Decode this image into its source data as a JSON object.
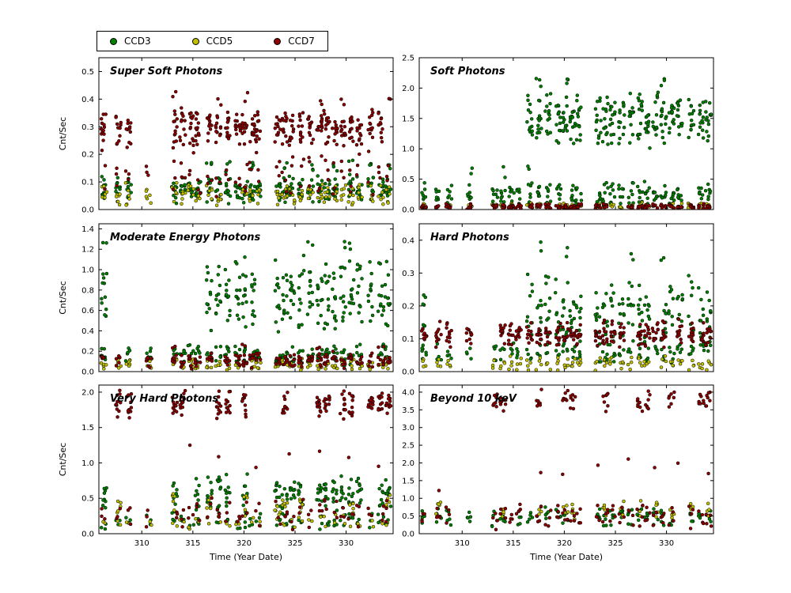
{
  "legend": {
    "items": [
      {
        "label": "CCD3",
        "color": "#008000"
      },
      {
        "label": "CCD5",
        "color": "#bfbf00"
      },
      {
        "label": "CCD7",
        "color": "#8b0000"
      }
    ]
  },
  "chart_data": {
    "type": "scatter",
    "xlabel": "Time (Year Date)",
    "ylabel": "Cnt/Sec",
    "xlim": [
      305.8,
      334.6
    ],
    "xticks": [
      310,
      315,
      320,
      325,
      330
    ],
    "grid": false,
    "legend_position": "top-left-outside",
    "series": {
      "CCD3": "#008000",
      "CCD5": "#bfbf00",
      "CCD7": "#8b0000"
    },
    "strip_times": [
      306.3,
      307.7,
      308.7,
      310.7,
      313.2,
      314.0,
      314.8,
      315.5,
      316.6,
      317.5,
      318.4,
      319.4,
      320.1,
      320.8,
      321.4,
      323.3,
      324.0,
      324.7,
      325.6,
      326.5,
      327.4,
      328.1,
      328.9,
      329.7,
      330.5,
      331.3,
      332.4,
      333.4,
      334.1
    ],
    "panels": [
      {
        "title": "Super Soft Photons",
        "ylim": [
          0,
          0.55
        ],
        "yticks": [
          "0.0",
          "0.1",
          "0.2",
          "0.3",
          "0.4",
          "0.5"
        ],
        "groups": [
          {
            "s": "CCD3",
            "strips": null,
            "y": [
              0.02,
              0.13
            ],
            "n": 10
          },
          {
            "s": "CCD3",
            "strips": [
              8,
              10,
              13,
              16,
              19,
              21,
              22,
              24,
              26,
              28
            ],
            "y": [
              0.12,
              0.19
            ],
            "n": 3
          },
          {
            "s": "CCD5",
            "strips": null,
            "y": [
              0.01,
              0.1
            ],
            "n": 6
          },
          {
            "s": "CCD7",
            "strips": null,
            "y": [
              0.22,
              0.37
            ],
            "n": 12
          },
          {
            "s": "CCD7",
            "strips": null,
            "y": [
              0.04,
              0.22
            ],
            "n": 3
          },
          {
            "s": "CCD7",
            "strips": [
              4,
              9,
              12,
              20,
              23,
              28
            ],
            "y": [
              0.37,
              0.44
            ],
            "n": 2
          }
        ]
      },
      {
        "title": "Soft Photons",
        "ylim": [
          0,
          2.5
        ],
        "yticks": [
          "0.0",
          "0.5",
          "1.0",
          "1.5",
          "2.0",
          "2.5"
        ],
        "groups": [
          {
            "s": "CCD3",
            "strips": null,
            "y": [
              0.05,
              0.5
            ],
            "n": 7
          },
          {
            "s": "CCD3",
            "strips": [
              3,
              5,
              8
            ],
            "y": [
              0.5,
              0.8
            ],
            "n": 2
          },
          {
            "s": "CCD3",
            "strips": [
              8,
              9,
              10,
              11,
              12,
              13,
              14,
              15,
              16,
              17,
              18,
              19,
              20,
              21,
              22,
              23,
              24,
              25,
              26,
              27,
              28
            ],
            "y": [
              1.0,
              1.95
            ],
            "n": 13
          },
          {
            "s": "CCD3",
            "strips": [
              9,
              12,
              23
            ],
            "y": [
              1.95,
              2.3
            ],
            "n": 3
          },
          {
            "s": "CCD5",
            "strips": null,
            "y": [
              0.0,
              0.12
            ],
            "n": 5
          },
          {
            "s": "CCD7",
            "strips": null,
            "y": [
              0.0,
              0.1
            ],
            "n": 7
          }
        ]
      },
      {
        "title": "Moderate Energy Photons",
        "ylim": [
          0,
          1.45
        ],
        "yticks": [
          "0.0",
          "0.2",
          "0.4",
          "0.6",
          "0.8",
          "1.0",
          "1.2",
          "1.4"
        ],
        "groups": [
          {
            "s": "CCD3",
            "strips": null,
            "y": [
              0.05,
              0.28
            ],
            "n": 6
          },
          {
            "s": "CCD3",
            "strips": [
              0,
              8,
              9,
              10,
              11,
              12,
              13,
              15,
              16,
              17,
              18,
              19,
              20,
              21,
              22,
              23,
              24,
              25,
              26,
              27,
              28
            ],
            "y": [
              0.35,
              1.15
            ],
            "n": 11
          },
          {
            "s": "CCD3",
            "strips": [
              0,
              19,
              23,
              24
            ],
            "y": [
              1.15,
              1.38
            ],
            "n": 2
          },
          {
            "s": "CCD5",
            "strips": null,
            "y": [
              0.0,
              0.14
            ],
            "n": 5
          },
          {
            "s": "CCD7",
            "strips": null,
            "y": [
              0.02,
              0.2
            ],
            "n": 7
          },
          {
            "s": "CCD7",
            "strips": [
              4,
              12,
              20,
              27
            ],
            "y": [
              0.2,
              0.3
            ],
            "n": 2
          }
        ]
      },
      {
        "title": "Hard Photons",
        "ylim": [
          0,
          0.45
        ],
        "yticks": [
          "0.0",
          "0.1",
          "0.2",
          "0.3",
          "0.4"
        ],
        "groups": [
          {
            "s": "CCD3",
            "strips": null,
            "y": [
              0.02,
              0.1
            ],
            "n": 4
          },
          {
            "s": "CCD3",
            "strips": [
              0,
              8,
              9,
              10,
              11,
              12,
              13,
              14,
              15,
              16,
              17,
              18,
              19,
              20,
              21,
              22,
              23,
              24,
              25,
              26,
              27,
              28
            ],
            "y": [
              0.05,
              0.3
            ],
            "n": 9
          },
          {
            "s": "CCD3",
            "strips": [
              9,
              12,
              19,
              23
            ],
            "y": [
              0.3,
              0.42
            ],
            "n": 2
          },
          {
            "s": "CCD5",
            "strips": null,
            "y": [
              0.0,
              0.05
            ],
            "n": 4
          },
          {
            "s": "CCD7",
            "strips": null,
            "y": [
              0.07,
              0.16
            ],
            "n": 11
          }
        ]
      },
      {
        "title": "Very Hard Photons",
        "ylim": [
          0,
          2.1
        ],
        "yticks": [
          "0.0",
          "0.5",
          "1.0",
          "1.5",
          "2.0"
        ],
        "groups": [
          {
            "s": "CCD3",
            "strips": null,
            "y": [
              0.04,
              0.3
            ],
            "n": 3
          },
          {
            "s": "CCD3",
            "strips": [
              0,
              4,
              7,
              8,
              9,
              10,
              12,
              13,
              15,
              16,
              17,
              18,
              19,
              20,
              21,
              22,
              23,
              24,
              25,
              27,
              28
            ],
            "y": [
              0.25,
              0.85
            ],
            "n": 9
          },
          {
            "s": "CCD5",
            "strips": [
              1,
              4,
              8,
              12,
              15,
              16,
              18,
              21,
              24,
              28
            ],
            "y": [
              0.2,
              0.6
            ],
            "n": 5
          },
          {
            "s": "CCD5",
            "strips": null,
            "y": [
              0.05,
              0.3
            ],
            "n": 2
          },
          {
            "s": "CCD7",
            "strips": [
              1,
              2,
              4,
              5,
              9,
              10,
              11,
              12,
              13,
              16,
              17,
              20,
              21,
              23,
              24,
              26,
              27,
              28
            ],
            "y": [
              1.6,
              2.05
            ],
            "n": 11
          },
          {
            "s": "CCD7",
            "strips": null,
            "y": [
              0.05,
              0.55
            ],
            "n": 3
          },
          {
            "s": "CCD7",
            "strips": [
              3,
              6,
              9,
              14,
              17,
              20,
              24,
              27
            ],
            "y": [
              0.8,
              1.35
            ],
            "n": 1
          }
        ]
      },
      {
        "title": "Beyond 10 keV",
        "ylim": [
          0,
          4.2
        ],
        "yticks": [
          "0.0",
          "0.5",
          "1.0",
          "1.5",
          "2.0",
          "2.5",
          "3.0",
          "3.5",
          "4.0"
        ],
        "groups": [
          {
            "s": "CCD3",
            "strips": null,
            "y": [
              0.15,
              0.8
            ],
            "n": 5
          },
          {
            "s": "CCD5",
            "strips": [
              1,
              5,
              9,
              12,
              13,
              16,
              18,
              20,
              22,
              24,
              26,
              28
            ],
            "y": [
              0.4,
              1.0
            ],
            "n": 5
          },
          {
            "s": "CCD7",
            "strips": null,
            "y": [
              0.1,
              0.9
            ],
            "n": 4
          },
          {
            "s": "CCD7",
            "strips": [
              1,
              7,
              9,
              12,
              15,
              19,
              22,
              25,
              28
            ],
            "y": [
              1.0,
              2.6
            ],
            "n": 1
          },
          {
            "s": "CCD7",
            "strips": [
              4,
              5,
              9,
              11,
              12,
              13,
              16,
              20,
              21,
              24,
              27,
              28
            ],
            "y": [
              3.4,
              4.1
            ],
            "n": 7
          }
        ]
      }
    ]
  }
}
